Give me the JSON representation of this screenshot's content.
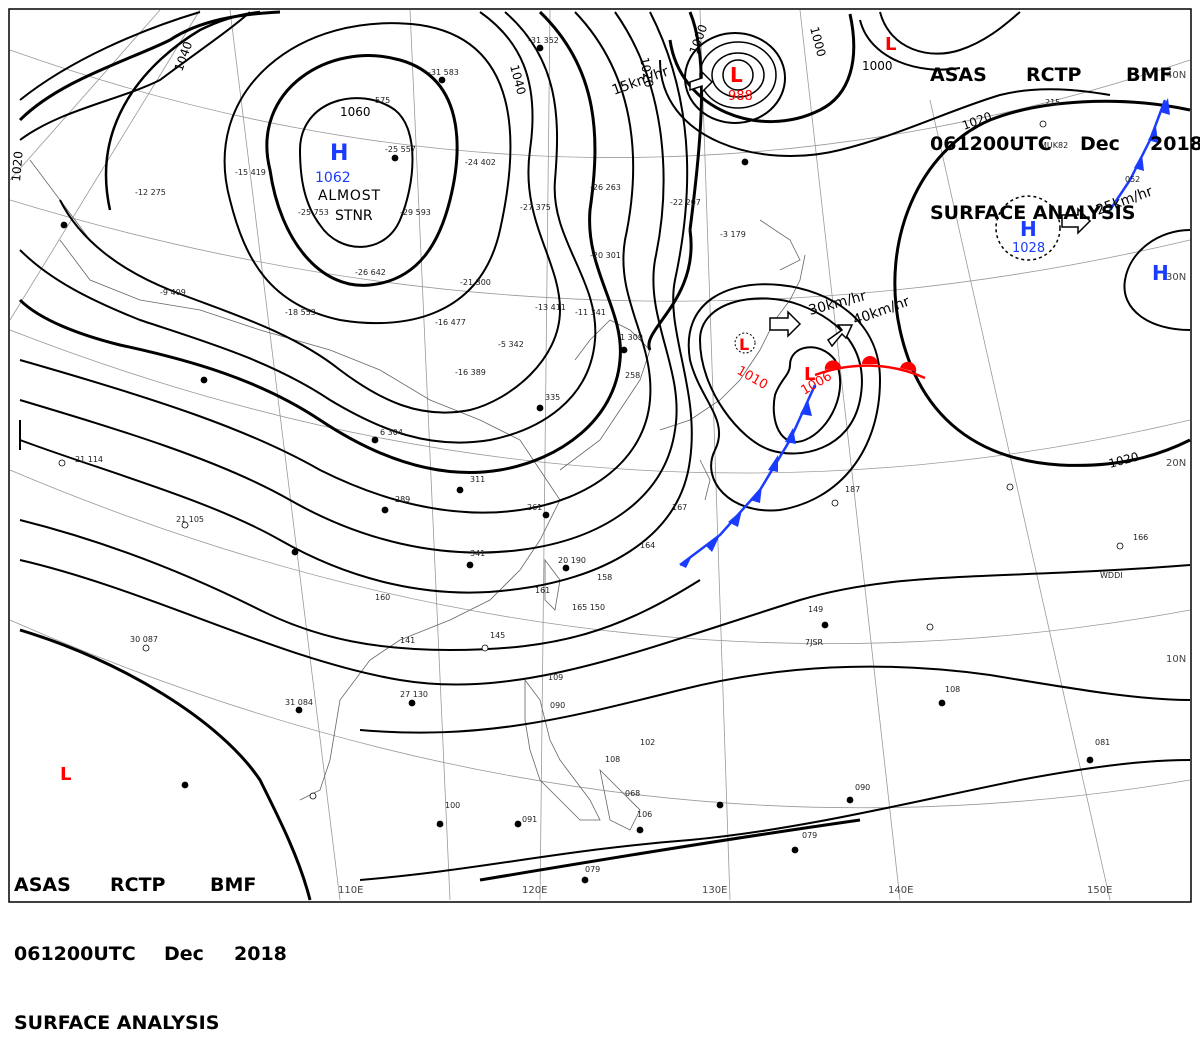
{
  "header": {
    "agency_1": "ASAS",
    "agency_2": "RCTP",
    "agency_3": "BMF",
    "time": "061200UTC",
    "month": "Dec",
    "year": "2018",
    "product": "SURFACE ANALYSIS"
  },
  "pressure_centers": [
    {
      "type": "H",
      "value": "1062",
      "note": "ALMOST STNR"
    },
    {
      "type": "L",
      "value": "988"
    },
    {
      "type": "L",
      "value": "1010"
    },
    {
      "type": "L",
      "value": "1006"
    },
    {
      "type": "H",
      "value": "1028"
    },
    {
      "type": "H",
      "value": ""
    },
    {
      "type": "L",
      "value": ""
    },
    {
      "type": "L",
      "value": ""
    }
  ],
  "isobar_labels": [
    "1060",
    "1040",
    "1040",
    "1020",
    "1000",
    "1000",
    "1000",
    "1020",
    "1020",
    "1020"
  ],
  "motion_labels": [
    "15km/hr",
    "30km/hr",
    "40km/hr",
    "25km/hr"
  ],
  "latitude_labels": [
    "40N",
    "30N",
    "20N",
    "10N"
  ],
  "longitude_labels": [
    "110E",
    "120E",
    "130E",
    "140E",
    "150E"
  ],
  "fronts": [
    "cold front",
    "warm front",
    "cold front"
  ],
  "colors": {
    "high": "#1a3cff",
    "low": "#ff0000",
    "isobar": "#000000",
    "grid": "#888888"
  }
}
